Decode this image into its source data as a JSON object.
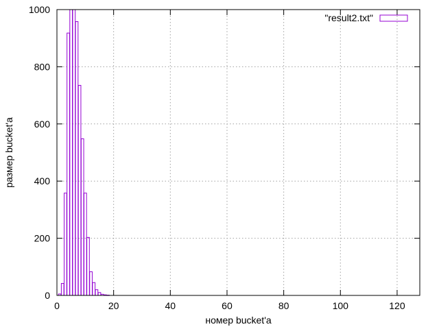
{
  "chart_data": {
    "type": "bar",
    "title": "",
    "xlabel": "номер bucket'a",
    "ylabel": "размер bucket'a",
    "xlim": [
      0,
      128
    ],
    "ylim": [
      0,
      1000
    ],
    "xticks": [
      0,
      20,
      40,
      60,
      80,
      100,
      120
    ],
    "yticks": [
      0,
      200,
      400,
      600,
      800,
      1000
    ],
    "grid": true,
    "legend": "top-right",
    "series": [
      {
        "name": "\"result2.txt\"",
        "color": "#9400d3",
        "x": [
          1,
          2,
          3,
          4,
          5,
          6,
          7,
          8,
          9,
          10,
          11,
          12,
          13,
          14,
          15,
          16,
          17,
          18
        ],
        "values": [
          5,
          42,
          358,
          918,
          1000,
          1000,
          958,
          735,
          548,
          358,
          203,
          83,
          45,
          20,
          10,
          4,
          2,
          1
        ]
      }
    ]
  }
}
